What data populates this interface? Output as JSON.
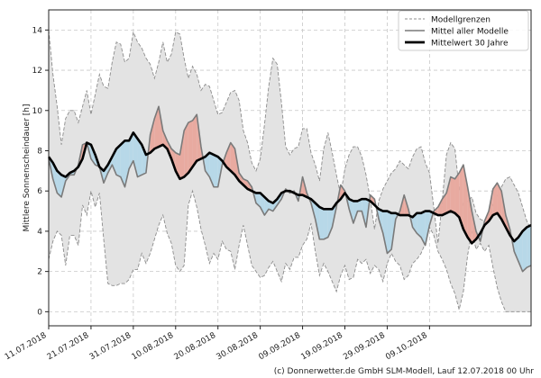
{
  "chart_data": {
    "type": "area",
    "title": "",
    "xlabel": "",
    "ylabel": "Mittlere Sonnenscheindauer [h]",
    "ylim": [
      -0.7,
      15
    ],
    "yticks": [
      0,
      2,
      4,
      6,
      8,
      10,
      12,
      14
    ],
    "xlim_days": [
      0,
      114
    ],
    "xtick_labels": [
      "11.07.2018",
      "21.07.2018",
      "31.07.2018",
      "10.08.2018",
      "20.08.2018",
      "30.08.2018",
      "09.09.2018",
      "19.09.2018",
      "29.09.2018",
      "09.10.2018"
    ],
    "xtick_days": [
      0,
      10,
      20,
      30,
      40,
      50,
      60,
      70,
      80,
      90
    ],
    "grid": true,
    "legend_position": "top-right",
    "legend": [
      "Modellgrenzen",
      "Mittel aller Modelle",
      "Mittelwert 30 Jahre"
    ],
    "colors": {
      "band": "#e3e3e3",
      "band_edge": "#8c8c8c",
      "model_mean": "#7a7a7a",
      "climate": "#000000",
      "above": "#e8aaa0",
      "below": "#b7d8e8",
      "grid": "#c8c8c8"
    },
    "series": [
      {
        "name": "Modellgrenzen_oben",
        "values": [
          14.0,
          11.8,
          10.2,
          8.3,
          9.6,
          10.0,
          10.0,
          9.4,
          10.2,
          11.0,
          9.8,
          10.8,
          11.8,
          11.2,
          11.1,
          12.4,
          13.4,
          13.3,
          12.4,
          12.6,
          13.9,
          13.4,
          13.1,
          12.6,
          12.3,
          11.6,
          12.4,
          13.4,
          12.4,
          12.8,
          13.9,
          13.8,
          12.6,
          11.6,
          12.2,
          11.8,
          11.0,
          11.3,
          11.2,
          10.5,
          9.8,
          9.9,
          10.4,
          10.9,
          11.0,
          10.5,
          9.0,
          8.4,
          7.4,
          7.0,
          7.6,
          9.3,
          11.2,
          12.6,
          12.3,
          10.4,
          8.2,
          7.8,
          8.1,
          8.2,
          9.1,
          9.1,
          7.9,
          7.3,
          6.5,
          8.1,
          8.9,
          7.9,
          6.8,
          5.8,
          7.1,
          7.8,
          8.2,
          8.2,
          7.7,
          6.8,
          5.6,
          4.1,
          5.5,
          6.1,
          6.5,
          6.9,
          7.1,
          7.5,
          7.3,
          7.1,
          7.7,
          8.1,
          8.2,
          7.4,
          6.9,
          5.2,
          3.4,
          5.5,
          7.8,
          8.4,
          8.1,
          6.1,
          5.3,
          5.5,
          5.7,
          4.9,
          4.6,
          4.5,
          4.8,
          5.3,
          5.8,
          6.2,
          6.6,
          6.7,
          6.3,
          5.9,
          5.2,
          4.5,
          4.1
        ]
      },
      {
        "name": "Modellgrenzen_unten",
        "values": [
          2.6,
          3.5,
          4.0,
          3.8,
          2.3,
          3.8,
          3.8,
          3.3,
          5.3,
          4.8,
          6.0,
          5.2,
          5.9,
          3.6,
          1.4,
          1.3,
          1.3,
          1.4,
          1.4,
          1.6,
          2.1,
          2.1,
          2.9,
          2.4,
          2.9,
          3.6,
          4.3,
          4.8,
          3.9,
          3.4,
          2.3,
          2.0,
          2.3,
          5.3,
          6.0,
          5.2,
          4.1,
          3.3,
          2.4,
          2.9,
          2.6,
          3.5,
          3.1,
          3.0,
          2.1,
          3.3,
          4.3,
          3.3,
          2.3,
          2.0,
          1.7,
          1.8,
          2.2,
          2.5,
          2.0,
          1.5,
          2.4,
          2.1,
          2.7,
          2.7,
          3.3,
          3.6,
          4.4,
          3.0,
          1.8,
          2.4,
          2.0,
          1.5,
          1.0,
          1.8,
          2.3,
          1.6,
          1.7,
          2.6,
          2.4,
          2.6,
          1.9,
          2.3,
          2.1,
          1.5,
          2.4,
          2.9,
          2.5,
          2.3,
          1.6,
          1.8,
          2.4,
          2.6,
          2.9,
          3.4,
          4.2,
          3.8,
          3.0,
          2.6,
          2.1,
          1.4,
          0.9,
          0.1,
          1.0,
          2.8,
          4.0,
          3.1,
          3.4,
          3.0,
          3.3,
          2.2,
          1.2,
          0.5,
          0.0,
          0.0,
          0.0,
          0.0,
          0.0,
          0.0,
          0.0
        ]
      },
      {
        "name": "Mittel aller Modelle",
        "values": [
          7.6,
          6.6,
          5.9,
          5.7,
          6.5,
          6.8,
          6.8,
          7.3,
          8.3,
          8.4,
          7.6,
          7.3,
          7.2,
          6.4,
          6.9,
          7.3,
          6.8,
          6.7,
          6.2,
          7.1,
          7.5,
          6.7,
          6.8,
          6.9,
          8.8,
          9.6,
          10.2,
          9.0,
          8.5,
          8.1,
          7.9,
          7.8,
          9.0,
          9.4,
          9.5,
          9.8,
          8.2,
          7.0,
          6.7,
          6.2,
          6.2,
          7.3,
          7.9,
          8.4,
          8.1,
          6.9,
          6.6,
          6.5,
          6.2,
          5.4,
          5.2,
          4.8,
          5.1,
          5.0,
          5.3,
          5.6,
          6.1,
          5.9,
          6.0,
          5.5,
          6.7,
          5.9,
          5.4,
          4.6,
          3.6,
          3.6,
          3.7,
          4.2,
          5.2,
          6.3,
          6.0,
          5.1,
          4.4,
          5.0,
          5.0,
          4.2,
          5.8,
          5.6,
          4.6,
          3.9,
          2.9,
          3.1,
          4.6,
          5.0,
          5.8,
          5.1,
          4.2,
          3.9,
          3.7,
          3.3,
          4.3,
          5.0,
          5.2,
          5.6,
          5.9,
          6.7,
          6.6,
          6.9,
          7.3,
          6.2,
          5.0,
          4.0,
          3.5,
          4.5,
          5.0,
          6.1,
          6.4,
          6.0,
          4.8,
          4.1,
          3.0,
          2.5,
          2.0,
          2.2,
          2.3
        ]
      },
      {
        "name": "Mittelwert 30 Jahre",
        "values": [
          7.7,
          7.4,
          7.0,
          6.8,
          6.7,
          6.9,
          7.0,
          7.2,
          7.6,
          8.4,
          8.3,
          7.8,
          7.2,
          7.0,
          7.3,
          7.7,
          8.1,
          8.3,
          8.5,
          8.5,
          8.9,
          8.6,
          8.3,
          7.8,
          7.9,
          8.1,
          8.2,
          8.3,
          8.1,
          7.6,
          7.0,
          6.6,
          6.7,
          6.9,
          7.2,
          7.5,
          7.6,
          7.7,
          7.9,
          7.8,
          7.7,
          7.5,
          7.2,
          7.0,
          6.8,
          6.5,
          6.3,
          6.1,
          6.0,
          5.9,
          5.9,
          5.7,
          5.5,
          5.4,
          5.6,
          5.9,
          6.0,
          6.0,
          5.9,
          5.8,
          5.8,
          5.7,
          5.6,
          5.4,
          5.2,
          5.1,
          5.1,
          5.1,
          5.4,
          5.6,
          5.9,
          5.6,
          5.5,
          5.5,
          5.6,
          5.6,
          5.5,
          5.3,
          5.1,
          5.0,
          5.0,
          4.9,
          4.9,
          4.8,
          4.8,
          4.8,
          4.7,
          4.9,
          4.9,
          5.0,
          5.0,
          4.9,
          4.8,
          4.8,
          4.9,
          5.0,
          4.9,
          4.7,
          4.1,
          3.7,
          3.4,
          3.6,
          3.9,
          4.3,
          4.5,
          4.8,
          4.9,
          4.6,
          4.2,
          3.8,
          3.5,
          3.7,
          4.0,
          4.2,
          4.3
        ]
      }
    ]
  },
  "legend": {
    "items": [
      {
        "label": "Modellgrenzen"
      },
      {
        "label": "Mittel aller Modelle"
      },
      {
        "label": "Mittelwert 30 Jahre"
      }
    ]
  },
  "footer": {
    "credit": "(c) Donnerwetter.de GmbH SLM-Modell, Lauf 12.07.2018 00 Uhr"
  }
}
